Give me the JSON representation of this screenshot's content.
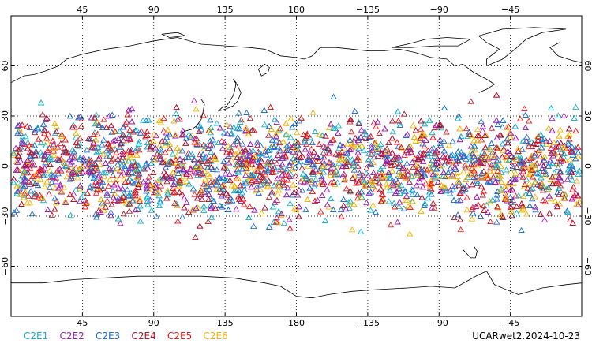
{
  "map": {
    "projection": "cylindrical equidistant",
    "lon_range": [
      0,
      360
    ],
    "lat_range": [
      -90,
      90
    ],
    "grid": "dotted",
    "grid_lons": [
      45,
      90,
      135,
      180,
      225,
      270,
      315
    ],
    "grid_lats": [
      -60,
      -30,
      0,
      30,
      60
    ],
    "lon_tick_labels": [
      "45",
      "90",
      "135",
      "180",
      "−135",
      "−90",
      "−45"
    ],
    "lat_tick_labels": [
      "60",
      "30",
      "0",
      "−30",
      "−60"
    ],
    "marker": "open-triangle-icon",
    "observation_lat_band": [
      -45,
      45
    ]
  },
  "legend": [
    {
      "label": "C2E1",
      "color": "#16b3cc"
    },
    {
      "label": "C2E2",
      "color": "#9a1fb8"
    },
    {
      "label": "C2E3",
      "color": "#1f6fd1"
    },
    {
      "label": "C2E4",
      "color": "#b3122a"
    },
    {
      "label": "C2E5",
      "color": "#ee1c1c"
    },
    {
      "label": "C2E6",
      "color": "#f3b400"
    }
  ],
  "footer": {
    "run_label": "UCARwet2.2024-10-23"
  }
}
